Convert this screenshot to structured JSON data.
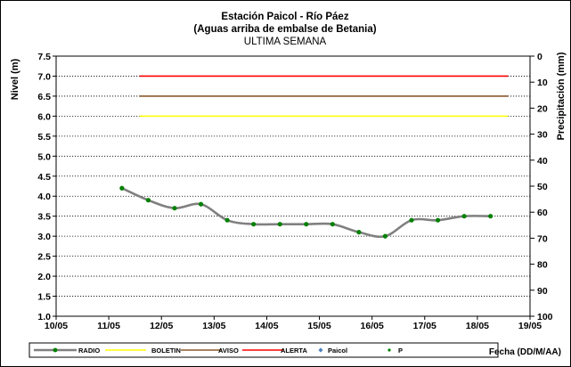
{
  "chart_data": {
    "type": "line",
    "title": "Estación Paicol  - Río Páez",
    "title_line2": "(Aguas arriba de embalse de Betania)",
    "subtitle": "ULTIMA SEMANA",
    "ylabel": "Nivel (m)",
    "y2label": "Precipitación (mm)",
    "xlabel": "Fecha  (DD/M/AA)",
    "x_tick_labels": [
      "10/05",
      "11/05",
      "12/05",
      "13/05",
      "14/05",
      "15/05",
      "16/05",
      "17/05",
      "18/05",
      "19/05"
    ],
    "ylim": [
      1.0,
      7.5
    ],
    "y_ticks": [
      "1.0",
      "1.5",
      "2.0",
      "2.5",
      "3.0",
      "3.5",
      "4.0",
      "4.5",
      "5.0",
      "5.5",
      "6.0",
      "6.5",
      "7.0",
      "7.5"
    ],
    "y2lim": [
      100,
      0
    ],
    "y2_ticks": [
      "0",
      "10",
      "20",
      "30",
      "40",
      "50",
      "60",
      "70",
      "80",
      "90",
      "100"
    ],
    "grid": true,
    "legend_placement": "bottom",
    "series": [
      {
        "name": "RADIO",
        "color": "#808080",
        "marker_color": "#008000",
        "x": [
          "11/05 06:00",
          "11/05 18:00",
          "12/05 06:00",
          "12/05 18:00",
          "13/05 06:00",
          "13/05 18:00",
          "14/05 06:00",
          "14/05 18:00",
          "15/05 06:00",
          "15/05 18:00",
          "16/05 06:00",
          "16/05 18:00",
          "17/05 06:00",
          "17/05 18:00",
          "18/05 06:00"
        ],
        "values": [
          4.2,
          3.9,
          3.7,
          3.8,
          3.4,
          3.3,
          3.3,
          3.3,
          3.3,
          3.1,
          3.0,
          3.4,
          3.4,
          3.5,
          3.5
        ]
      },
      {
        "name": "BOLETIN",
        "color": "#ffff00",
        "x_range": [
          "11/05 14:00",
          "18/05 14:00"
        ],
        "value": 6.0
      },
      {
        "name": "AVISO",
        "color": "#8b5a2b",
        "x_range": [
          "11/05 14:00",
          "18/05 14:00"
        ],
        "value": 6.5
      },
      {
        "name": "ALERTA",
        "color": "#ff0000",
        "x_range": [
          "11/05 14:00",
          "18/05 14:00"
        ],
        "value": 7.0
      },
      {
        "name": "Paicol",
        "color": "#4f81bd",
        "values": []
      },
      {
        "name": "P",
        "color": "#008000",
        "values": []
      }
    ]
  }
}
